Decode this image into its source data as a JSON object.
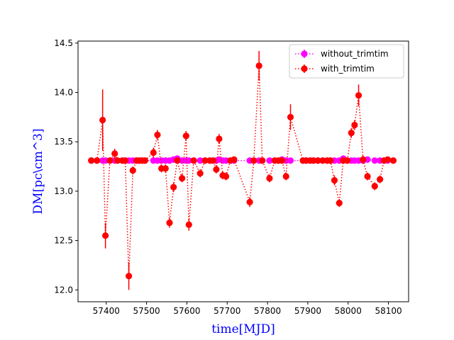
{
  "chart_data": {
    "type": "scatter",
    "title": "",
    "xlabel": "time[MJD]",
    "ylabel": "DM[pc\\cm^3]",
    "xlim": [
      57330,
      58150
    ],
    "ylim": [
      11.88,
      14.52
    ],
    "xticks": [
      57400,
      57500,
      57600,
      57700,
      57800,
      57900,
      58000,
      58100
    ],
    "yticks": [
      12.0,
      12.5,
      13.0,
      13.5,
      14.0,
      14.5
    ],
    "xtick_labels": [
      "57400",
      "57500",
      "57600",
      "57700",
      "57800",
      "57900",
      "58000",
      "58100"
    ],
    "ytick_labels": [
      "12.0",
      "12.5",
      "13.0",
      "13.5",
      "14.0",
      "14.5"
    ],
    "grid": false,
    "legend_position": "top-right",
    "series": [
      {
        "name": "without_trimtim",
        "color": "#ff00ff",
        "marker": "circle",
        "linestyle": "dotted",
        "x": [
          57363,
          57377,
          57391,
          57398,
          57409,
          57421,
          57428,
          57440,
          57447,
          57456,
          57466,
          57475,
          57482,
          57489,
          57496,
          57517,
          57527,
          57537,
          57547,
          57557,
          57567,
          57576,
          57588,
          57598,
          57605,
          57617,
          57633,
          57645,
          57657,
          57665,
          57673,
          57680,
          57689,
          57697,
          57708,
          57717,
          57756,
          57766,
          57779,
          57787,
          57805,
          57818,
          57827,
          57836,
          57846,
          57857,
          57888,
          57896,
          57906,
          57914,
          57925,
          57937,
          57948,
          57956,
          57966,
          57978,
          57988,
          57998,
          58008,
          58016,
          58026,
          58037,
          58048,
          58066,
          58079,
          58089,
          58098,
          58112
        ],
        "values": [
          13.31,
          13.31,
          13.31,
          13.31,
          13.31,
          13.31,
          13.31,
          13.31,
          13.31,
          13.31,
          13.31,
          13.31,
          13.31,
          13.31,
          13.31,
          13.31,
          13.31,
          13.31,
          13.31,
          13.31,
          13.32,
          13.33,
          13.31,
          13.31,
          13.31,
          13.31,
          13.31,
          13.31,
          13.31,
          13.31,
          13.31,
          13.32,
          13.31,
          13.31,
          13.31,
          13.31,
          13.31,
          13.31,
          13.31,
          13.31,
          13.31,
          13.31,
          13.31,
          13.32,
          13.31,
          13.31,
          13.31,
          13.31,
          13.31,
          13.31,
          13.31,
          13.31,
          13.31,
          13.31,
          13.31,
          13.31,
          13.33,
          13.31,
          13.31,
          13.31,
          13.31,
          13.31,
          13.32,
          13.31,
          13.31,
          13.31,
          13.31,
          13.31
        ],
        "errors": [
          0.02,
          0.02,
          0.02,
          0.02,
          0.02,
          0.02,
          0.02,
          0.02,
          0.02,
          0.02,
          0.02,
          0.02,
          0.02,
          0.02,
          0.02,
          0.02,
          0.02,
          0.02,
          0.02,
          0.02,
          0.02,
          0.02,
          0.02,
          0.02,
          0.02,
          0.02,
          0.02,
          0.02,
          0.02,
          0.02,
          0.02,
          0.02,
          0.02,
          0.02,
          0.02,
          0.02,
          0.02,
          0.02,
          0.02,
          0.02,
          0.02,
          0.02,
          0.02,
          0.02,
          0.02,
          0.02,
          0.02,
          0.02,
          0.02,
          0.02,
          0.02,
          0.02,
          0.02,
          0.02,
          0.02,
          0.02,
          0.02,
          0.02,
          0.02,
          0.02,
          0.02,
          0.02,
          0.02,
          0.02,
          0.02,
          0.02,
          0.02,
          0.02
        ]
      },
      {
        "name": "with_trimtim",
        "color": "#ff0000",
        "marker": "circle",
        "linestyle": "dotted",
        "x": [
          57363,
          57377,
          57391,
          57398,
          57409,
          57421,
          57428,
          57440,
          57447,
          57456,
          57466,
          57475,
          57482,
          57489,
          57496,
          57517,
          57527,
          57537,
          57547,
          57557,
          57567,
          57576,
          57588,
          57598,
          57605,
          57617,
          57633,
          57645,
          57657,
          57665,
          57673,
          57680,
          57689,
          57697,
          57708,
          57717,
          57756,
          57766,
          57779,
          57787,
          57805,
          57818,
          57827,
          57836,
          57846,
          57857,
          57888,
          57896,
          57906,
          57914,
          57925,
          57937,
          57948,
          57956,
          57966,
          57978,
          57988,
          57998,
          58008,
          58016,
          58026,
          58037,
          58048,
          58066,
          58079,
          58089,
          58098,
          58112
        ],
        "values": [
          13.31,
          13.31,
          13.72,
          12.55,
          13.31,
          13.38,
          13.31,
          13.31,
          13.31,
          12.14,
          13.21,
          13.31,
          13.31,
          13.31,
          13.31,
          13.39,
          13.57,
          13.23,
          13.23,
          12.68,
          13.04,
          13.31,
          13.13,
          13.56,
          12.66,
          13.31,
          13.18,
          13.31,
          13.31,
          13.31,
          13.22,
          13.53,
          13.16,
          13.15,
          13.31,
          13.32,
          12.89,
          13.31,
          14.27,
          13.31,
          13.13,
          13.31,
          13.31,
          13.31,
          13.15,
          13.75,
          13.31,
          13.31,
          13.31,
          13.31,
          13.31,
          13.31,
          13.31,
          13.31,
          13.11,
          12.88,
          13.31,
          13.31,
          13.59,
          13.67,
          13.97,
          13.32,
          13.15,
          13.05,
          13.12,
          13.31,
          13.32,
          13.31
        ],
        "errors": [
          0.03,
          0.03,
          0.31,
          0.13,
          0.03,
          0.05,
          0.03,
          0.03,
          0.03,
          0.14,
          0.04,
          0.03,
          0.03,
          0.03,
          0.03,
          0.05,
          0.05,
          0.04,
          0.04,
          0.05,
          0.05,
          0.03,
          0.04,
          0.05,
          0.06,
          0.03,
          0.04,
          0.03,
          0.03,
          0.03,
          0.04,
          0.05,
          0.04,
          0.04,
          0.03,
          0.03,
          0.05,
          0.03,
          0.15,
          0.03,
          0.04,
          0.03,
          0.03,
          0.03,
          0.04,
          0.13,
          0.03,
          0.03,
          0.03,
          0.03,
          0.03,
          0.03,
          0.03,
          0.03,
          0.05,
          0.04,
          0.03,
          0.03,
          0.05,
          0.05,
          0.11,
          0.04,
          0.04,
          0.04,
          0.04,
          0.03,
          0.03,
          0.03
        ]
      }
    ]
  }
}
